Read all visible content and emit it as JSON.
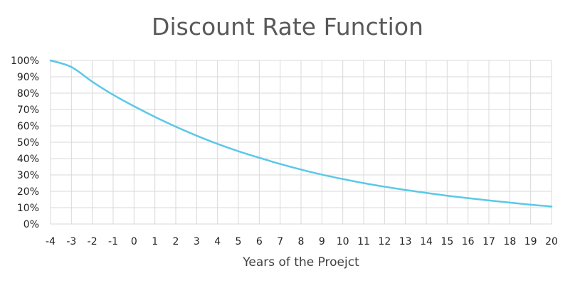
{
  "chart_data": {
    "type": "line",
    "title": "Discount Rate Function",
    "xlabel": "Years of the Proejct",
    "ylabel": "",
    "x": [
      -4,
      -3,
      -2,
      -1,
      0,
      1,
      2,
      3,
      4,
      5,
      6,
      7,
      8,
      9,
      10,
      11,
      12,
      13,
      14,
      15,
      16,
      17,
      18,
      19,
      20
    ],
    "x_tick_labels": [
      "-4",
      "-3",
      "-2",
      "-1",
      "0",
      "1",
      "2",
      "3",
      "4",
      "5",
      "6",
      "7",
      "8",
      "9",
      "10",
      "11",
      "12",
      "13",
      "14",
      "15",
      "16",
      "17",
      "18",
      "19",
      "20"
    ],
    "y_tick_labels": [
      "0%",
      "10%",
      "20%",
      "30%",
      "40%",
      "50%",
      "60%",
      "70%",
      "80%",
      "90%",
      "100%"
    ],
    "xlim": [
      -4,
      20
    ],
    "ylim": [
      0,
      1
    ],
    "grid": true,
    "series": [
      {
        "values": [
          1.0,
          0.96,
          0.87,
          0.79,
          0.72,
          0.655,
          0.595,
          0.54,
          0.49,
          0.445,
          0.405,
          0.367,
          0.333,
          0.302,
          0.275,
          0.25,
          0.228,
          0.208,
          0.19,
          0.173,
          0.158,
          0.144,
          0.131,
          0.118,
          0.107
        ]
      }
    ]
  },
  "colors": {
    "series": "#5BC8E8",
    "grid": "#D9D9D9",
    "title": "#595959"
  }
}
